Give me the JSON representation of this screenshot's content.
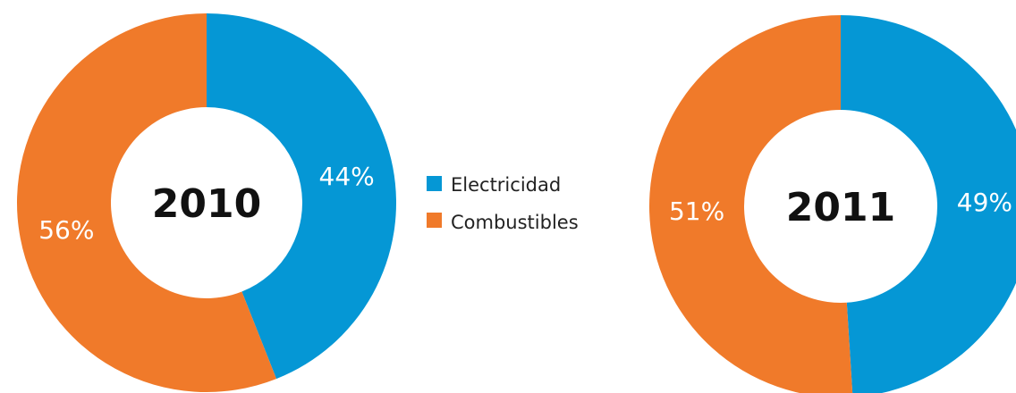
{
  "chart_data": [
    {
      "type": "pie",
      "variant": "donut",
      "center_label": "2010",
      "categories": [
        "Electricidad",
        "Combustibles"
      ],
      "values": [
        44,
        56
      ],
      "value_labels": [
        "44%",
        "56%"
      ],
      "colors": [
        "#0597D5",
        "#F07A2A"
      ]
    },
    {
      "type": "pie",
      "variant": "donut",
      "center_label": "2011",
      "categories": [
        "Electricidad",
        "Combustibles"
      ],
      "values": [
        49,
        51
      ],
      "value_labels": [
        "49%",
        "51%"
      ],
      "colors": [
        "#0597D5",
        "#F07A2A"
      ]
    }
  ],
  "legend": {
    "placement": "between charts",
    "items": [
      {
        "label": "Electricidad",
        "color": "#0597D5"
      },
      {
        "label": "Combustibles",
        "color": "#F07A2A"
      }
    ]
  }
}
